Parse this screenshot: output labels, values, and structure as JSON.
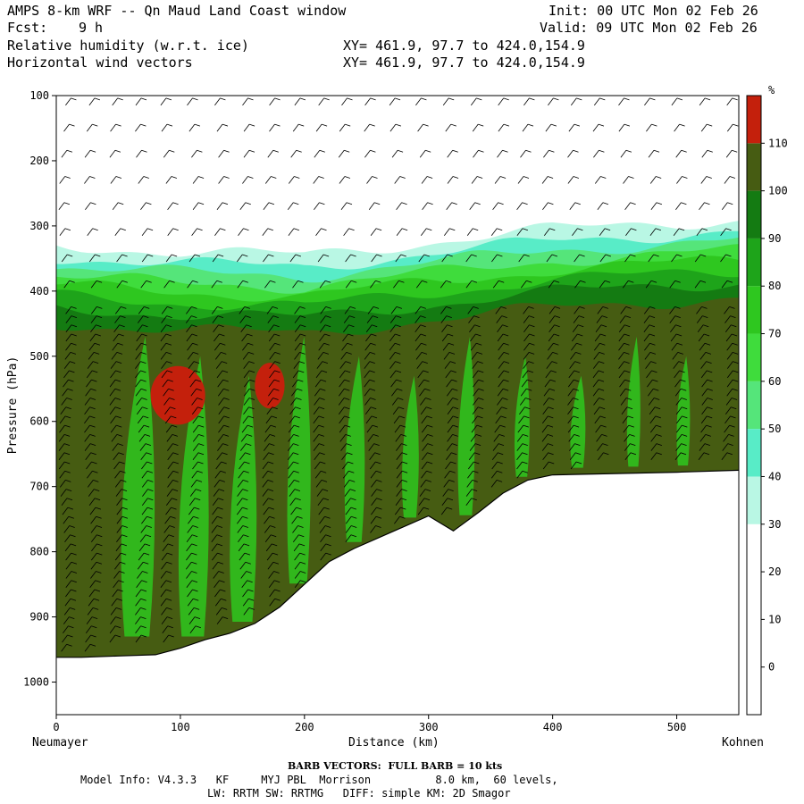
{
  "header": {
    "title": "AMPS 8-km WRF -- Qn Maud Land Coast window",
    "fcst_label": "Fcst:",
    "fcst_value": "9 h",
    "field1": "Relative humidity (w.r.t. ice)",
    "field2": "Horizontal wind vectors",
    "xy1": "XY= 461.9, 97.7 to 424.0,154.9",
    "xy2": "XY= 461.9, 97.7 to 424.0,154.9",
    "init": "Init: 00 UTC Mon 02 Feb 26",
    "valid": "Valid: 09 UTC Mon 02 Feb 26"
  },
  "footer": {
    "barb_note": "BARB VECTORS:  FULL BARB = 10 kts",
    "model_info": "Model Info: V4.3.3   KF     MYJ PBL  Morrison          8.0 km,  60 levels,",
    "model_info2": "LW: RRTM SW: RRTMG   DIFF: simple KM: 2D Smagor"
  },
  "colors": {
    "c_lt30": "#ffffff",
    "c_30_40": "#b9f7e4",
    "c_40_50": "#58ecc7",
    "c_50_60": "#55e57a",
    "c_60_70": "#3fdc3c",
    "c_70_80": "#2ec71f",
    "c_80_90": "#1ea41a",
    "c_90_100": "#147b12",
    "c_100_110": "#465c12",
    "c_gt110": "#c4200c",
    "barb": "#000000"
  },
  "chart_data": {
    "type": "heatmap",
    "title": "Relative humidity (w.r.t. ice)",
    "xlabel": "Distance (km)",
    "ylabel": "Pressure (hPa)",
    "x_start_label": "Neumayer",
    "x_end_label": "Kohnen",
    "xlim": [
      0,
      550
    ],
    "ylim": [
      1050,
      100
    ],
    "x_ticks": [
      0,
      100,
      200,
      300,
      400,
      500
    ],
    "y_ticks": [
      100,
      200,
      300,
      400,
      500,
      600,
      700,
      800,
      900,
      1000
    ],
    "colorbar_unit": "%",
    "colorbar_levels": [
      0,
      10,
      20,
      30,
      40,
      50,
      60,
      70,
      80,
      90,
      100,
      110
    ],
    "terrain_surface": [
      {
        "x": 0,
        "p": 962
      },
      {
        "x": 20,
        "p": 962
      },
      {
        "x": 50,
        "p": 960
      },
      {
        "x": 80,
        "p": 958
      },
      {
        "x": 100,
        "p": 948
      },
      {
        "x": 120,
        "p": 935
      },
      {
        "x": 140,
        "p": 925
      },
      {
        "x": 160,
        "p": 910
      },
      {
        "x": 180,
        "p": 885
      },
      {
        "x": 200,
        "p": 850
      },
      {
        "x": 220,
        "p": 815
      },
      {
        "x": 240,
        "p": 795
      },
      {
        "x": 270,
        "p": 770
      },
      {
        "x": 300,
        "p": 745
      },
      {
        "x": 320,
        "p": 768
      },
      {
        "x": 340,
        "p": 740
      },
      {
        "x": 360,
        "p": 710
      },
      {
        "x": 380,
        "p": 690
      },
      {
        "x": 400,
        "p": 682
      },
      {
        "x": 450,
        "p": 680
      },
      {
        "x": 500,
        "p": 678
      },
      {
        "x": 550,
        "p": 675
      }
    ],
    "moist_top": [
      {
        "x": 0,
        "p": 330
      },
      {
        "x": 100,
        "p": 340
      },
      {
        "x": 200,
        "p": 345
      },
      {
        "x": 300,
        "p": 325
      },
      {
        "x": 400,
        "p": 305
      },
      {
        "x": 500,
        "p": 295
      },
      {
        "x": 550,
        "p": 290
      }
    ],
    "high_rh_regions": [
      {
        "label": ">110",
        "x_center": 98,
        "p_center": 560,
        "x_radius": 22,
        "p_radius": 45
      },
      {
        "label": ">110",
        "x_center": 172,
        "p_center": 545,
        "x_radius": 12,
        "p_radius": 35
      }
    ]
  }
}
